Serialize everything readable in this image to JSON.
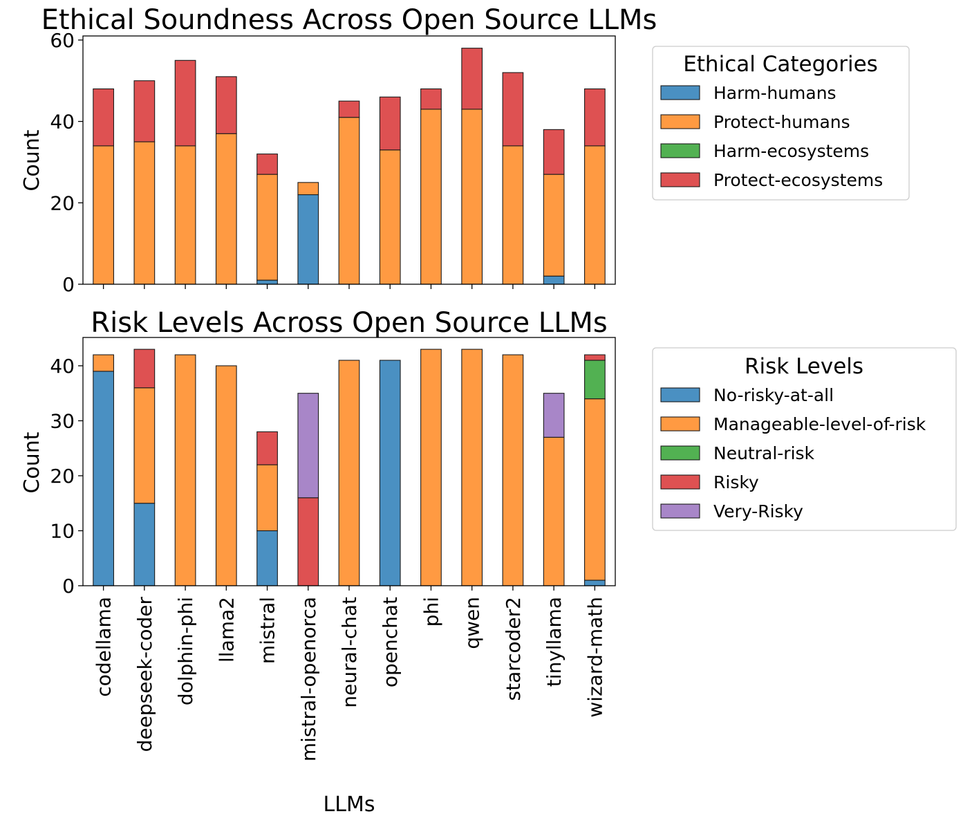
{
  "chart_data": [
    {
      "type": "bar",
      "stacked": true,
      "title": "Ethical Soundness Across Open Source LLMs",
      "xlabel": "",
      "ylabel": "Count",
      "ylim": [
        0,
        61
      ],
      "yticks": [
        0,
        20,
        40,
        60
      ],
      "categories": [
        "codellama",
        "deepseek-coder",
        "dolphin-phi",
        "llama2",
        "mistral",
        "mistral-openorca",
        "neural-chat",
        "openchat",
        "phi",
        "qwen",
        "starcoder2",
        "tinyllama",
        "wizard-math"
      ],
      "legend_title": "Ethical Categories",
      "legend_position": "outside-right",
      "series": [
        {
          "name": "Harm-humans",
          "color": "#4a90c2",
          "values": [
            0,
            0,
            0,
            0,
            1,
            22,
            0,
            0,
            0,
            0,
            0,
            2,
            0
          ]
        },
        {
          "name": "Protect-humans",
          "color": "#ff9a42",
          "values": [
            34,
            35,
            34,
            37,
            26,
            3,
            41,
            33,
            43,
            43,
            34,
            25,
            34
          ]
        },
        {
          "name": "Harm-ecosystems",
          "color": "#52b152",
          "values": [
            0,
            0,
            0,
            0,
            0,
            0,
            0,
            0,
            0,
            0,
            0,
            0,
            0
          ]
        },
        {
          "name": "Protect-ecosystems",
          "color": "#de5152",
          "values": [
            14,
            15,
            21,
            14,
            5,
            0,
            4,
            13,
            5,
            15,
            18,
            11,
            14
          ]
        }
      ]
    },
    {
      "type": "bar",
      "stacked": true,
      "title": "Risk Levels Across Open Source LLMs",
      "xlabel": "LLMs",
      "ylabel": "Count",
      "ylim": [
        0,
        45.15
      ],
      "yticks": [
        0,
        10,
        20,
        30,
        40
      ],
      "categories": [
        "codellama",
        "deepseek-coder",
        "dolphin-phi",
        "llama2",
        "mistral",
        "mistral-openorca",
        "neural-chat",
        "openchat",
        "phi",
        "qwen",
        "starcoder2",
        "tinyllama",
        "wizard-math"
      ],
      "legend_title": "Risk Levels",
      "legend_position": "outside-right",
      "series": [
        {
          "name": "No-risky-at-all",
          "color": "#4a90c2",
          "values": [
            39,
            15,
            0,
            0,
            10,
            0,
            0,
            41,
            0,
            0,
            0,
            0,
            1
          ]
        },
        {
          "name": "Manageable-level-of-risk",
          "color": "#ff9a42",
          "values": [
            3,
            21,
            42,
            40,
            12,
            0,
            41,
            0,
            43,
            43,
            42,
            27,
            33
          ]
        },
        {
          "name": "Neutral-risk",
          "color": "#52b152",
          "values": [
            0,
            0,
            0,
            0,
            0,
            0,
            0,
            0,
            0,
            0,
            0,
            0,
            7
          ]
        },
        {
          "name": "Risky",
          "color": "#de5152",
          "values": [
            0,
            7,
            0,
            0,
            6,
            16,
            0,
            0,
            0,
            0,
            0,
            0,
            1
          ]
        },
        {
          "name": "Very-Risky",
          "color": "#a886c8",
          "values": [
            0,
            0,
            0,
            0,
            0,
            19,
            0,
            0,
            0,
            0,
            0,
            8,
            0
          ]
        }
      ]
    }
  ]
}
